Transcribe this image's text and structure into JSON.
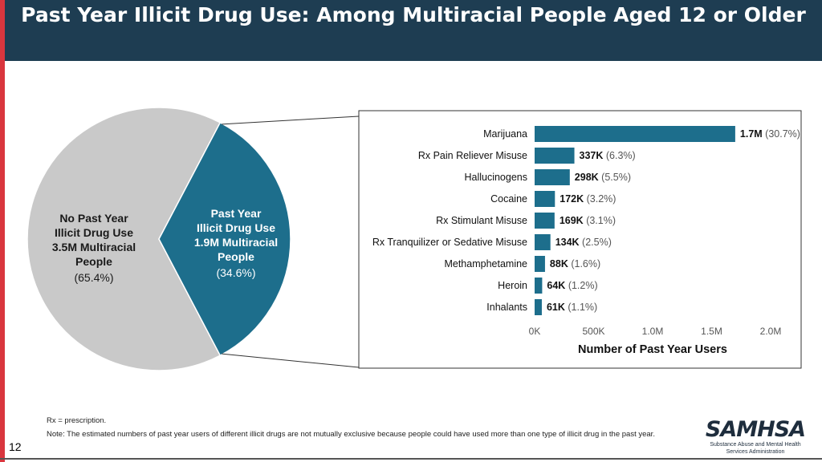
{
  "title": "Past Year Illicit Drug Use: Among Multiracial People Aged 12 or Older",
  "colors": {
    "teal": "#1d6e8c",
    "gray": "#c9c9c9",
    "header": "#1e3d52",
    "accent_bar": "#d9363e"
  },
  "chart_data": [
    {
      "type": "pie",
      "title": "",
      "slices": [
        {
          "label_lines": [
            "No Past Year",
            "Illicit Drug Use",
            "3.5M Multiracial",
            "People"
          ],
          "pct_label": "(65.4%)",
          "value": 65.4,
          "color": "#c9c9c9"
        },
        {
          "label_lines": [
            "Past Year",
            "Illicit Drug Use",
            "1.9M Multiracial",
            "People"
          ],
          "pct_label": "(34.6%)",
          "value": 34.6,
          "color": "#1d6e8c"
        }
      ]
    },
    {
      "type": "bar",
      "orientation": "horizontal",
      "title": "",
      "xlabel": "Number of Past Year Users",
      "ylabel": "",
      "xlim": [
        0,
        2000000
      ],
      "ticks": [
        {
          "value": 0,
          "label": "0K"
        },
        {
          "value": 500000,
          "label": "500K"
        },
        {
          "value": 1000000,
          "label": "1.0M"
        },
        {
          "value": 1500000,
          "label": "1.5M"
        },
        {
          "value": 2000000,
          "label": "2.0M"
        }
      ],
      "categories": [
        "Marijuana",
        "Rx Pain Reliever Misuse",
        "Hallucinogens",
        "Cocaine",
        "Rx Stimulant Misuse",
        "Rx Tranquilizer or Sedative Misuse",
        "Methamphetamine",
        "Heroin",
        "Inhalants"
      ],
      "values": [
        1700000,
        337000,
        298000,
        172000,
        169000,
        134000,
        88000,
        64000,
        61000
      ],
      "value_labels": [
        "1.7M",
        "337K",
        "298K",
        "172K",
        "169K",
        "134K",
        "88K",
        "64K",
        "61K"
      ],
      "pct_labels": [
        "(30.7%)",
        "(6.3%)",
        "(5.5%)",
        "(3.2%)",
        "(3.1%)",
        "(2.5%)",
        "(1.6%)",
        "(1.2%)",
        "(1.1%)"
      ]
    }
  ],
  "footnotes": {
    "rx": "Rx = prescription.",
    "note": "Note: The estimated numbers of past year users of different illicit drugs are not mutually exclusive because people could have used more than one type of illicit drug in the past year."
  },
  "page_number": "12",
  "logo": {
    "text": "SAMHSA",
    "subtitle_lines": [
      "Substance Abuse and Mental Health",
      "Services Administration"
    ]
  }
}
